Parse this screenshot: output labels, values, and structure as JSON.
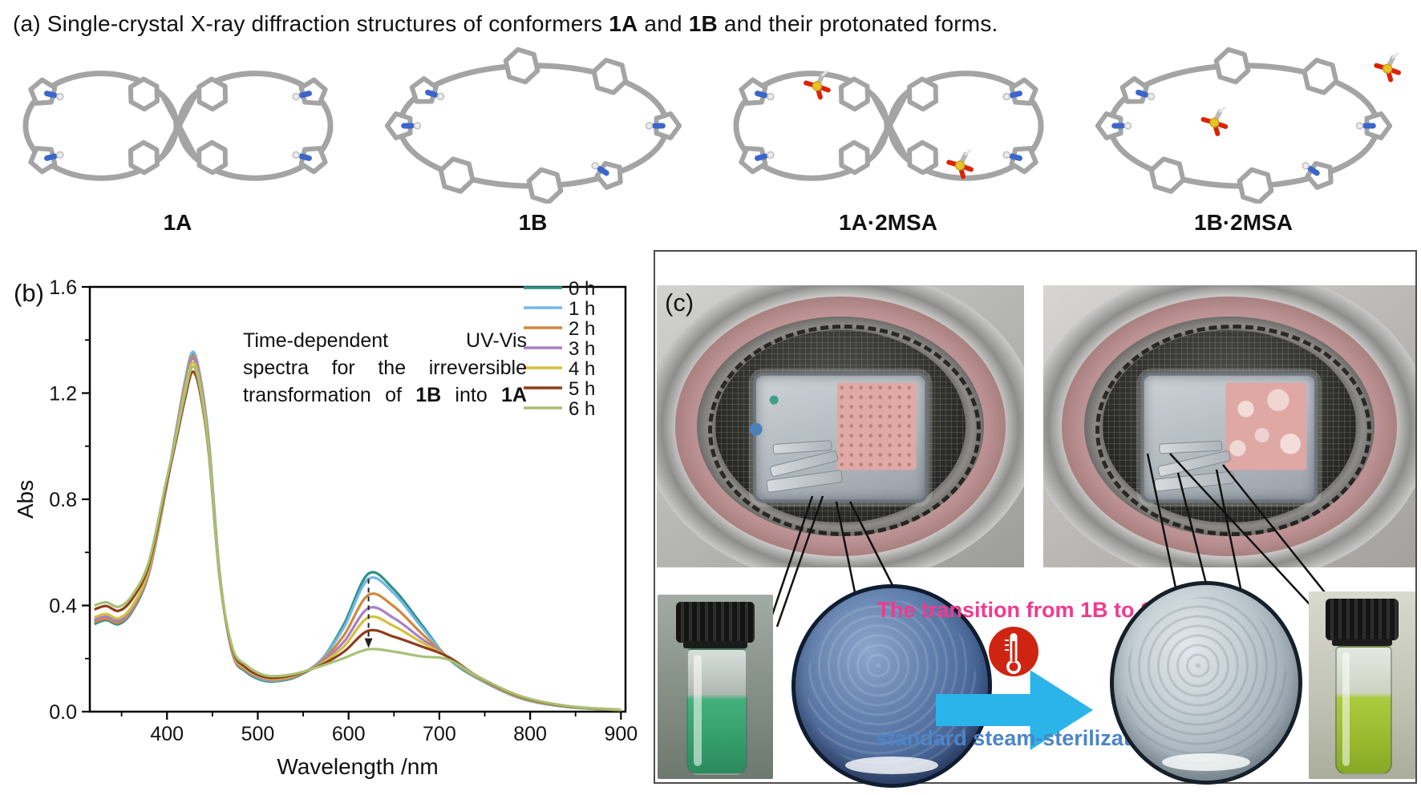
{
  "figure_title_segments": [
    {
      "t": "(a) Single-crystal X-ray diffraction structures of conformers "
    },
    {
      "t": "1A",
      "b": true
    },
    {
      "t": " and "
    },
    {
      "t": "1B",
      "b": true
    },
    {
      "t": " and their protonated forms."
    }
  ],
  "panel_a": {
    "label": "(a)",
    "molecules": [
      {
        "label": "1A",
        "shape": "figure8"
      },
      {
        "label": "1B",
        "shape": "ellipse"
      },
      {
        "label": "1A·2MSA",
        "shape": "figure8-msa"
      },
      {
        "label": "1B·2MSA",
        "shape": "ellipse-msa"
      }
    ]
  },
  "chart_data": {
    "type": "line",
    "panel_label": "(b)",
    "title": "",
    "xlabel": "Wavelength /nm",
    "ylabel": "Abs",
    "xlim": [
      315,
      905
    ],
    "ylim": [
      0,
      1.6
    ],
    "xticks": [
      400,
      500,
      600,
      700,
      800,
      900
    ],
    "xticks_minor": [
      350,
      450,
      550,
      650,
      750,
      850
    ],
    "yticks": [
      "0.0",
      "0.4",
      "0.8",
      "1.2",
      "1.6"
    ],
    "ytick_values": [
      0,
      0.4,
      0.8,
      1.2,
      1.6
    ],
    "yticks_minor": [
      0.2,
      0.6,
      1.0,
      1.4
    ],
    "grid": false,
    "legend_position": "upper right",
    "x": [
      320,
      333,
      347,
      362,
      380,
      398,
      410,
      420,
      428,
      436,
      446,
      458,
      472,
      487,
      505,
      522,
      545,
      570,
      595,
      622,
      650,
      680,
      710,
      745,
      790,
      840,
      900
    ],
    "series": [
      {
        "name": "0 h",
        "color": "#2f9184",
        "values": [
          0.33,
          0.345,
          0.33,
          0.38,
          0.52,
          0.82,
          1.05,
          1.24,
          1.35,
          1.27,
          1.02,
          0.52,
          0.22,
          0.15,
          0.118,
          0.115,
          0.135,
          0.195,
          0.33,
          0.52,
          0.46,
          0.33,
          0.2,
          0.12,
          0.05,
          0.018,
          0.006
        ]
      },
      {
        "name": "1 h",
        "color": "#72b8e6",
        "values": [
          0.34,
          0.355,
          0.34,
          0.39,
          0.53,
          0.83,
          1.06,
          1.25,
          1.355,
          1.275,
          1.025,
          0.525,
          0.222,
          0.155,
          0.122,
          0.118,
          0.138,
          0.196,
          0.318,
          0.5,
          0.445,
          0.32,
          0.202,
          0.122,
          0.051,
          0.018,
          0.006
        ]
      },
      {
        "name": "2 h",
        "color": "#d1873f",
        "values": [
          0.337,
          0.35,
          0.336,
          0.386,
          0.525,
          0.825,
          1.052,
          1.238,
          1.34,
          1.262,
          1.012,
          0.518,
          0.222,
          0.155,
          0.125,
          0.12,
          0.138,
          0.19,
          0.288,
          0.44,
          0.396,
          0.296,
          0.203,
          0.123,
          0.052,
          0.019,
          0.006
        ]
      },
      {
        "name": "3 h",
        "color": "#a97fc6",
        "values": [
          0.345,
          0.358,
          0.343,
          0.392,
          0.53,
          0.826,
          1.046,
          1.228,
          1.33,
          1.252,
          1.004,
          0.514,
          0.226,
          0.158,
          0.127,
          0.122,
          0.14,
          0.186,
          0.264,
          0.39,
          0.352,
          0.276,
          0.204,
          0.124,
          0.053,
          0.019,
          0.006
        ]
      },
      {
        "name": "4 h",
        "color": "#d4c03c",
        "values": [
          0.355,
          0.368,
          0.352,
          0.4,
          0.536,
          0.83,
          1.04,
          1.216,
          1.315,
          1.24,
          0.995,
          0.512,
          0.23,
          0.161,
          0.13,
          0.124,
          0.141,
          0.181,
          0.246,
          0.355,
          0.322,
          0.262,
          0.205,
          0.125,
          0.054,
          0.02,
          0.006
        ]
      },
      {
        "name": "5 h",
        "color": "#8e3d1c",
        "values": [
          0.385,
          0.398,
          0.38,
          0.426,
          0.552,
          0.836,
          1.022,
          1.182,
          1.28,
          1.21,
          0.976,
          0.506,
          0.236,
          0.166,
          0.133,
          0.128,
          0.143,
          0.176,
          0.226,
          0.305,
          0.282,
          0.246,
          0.206,
          0.127,
          0.056,
          0.021,
          0.007
        ]
      },
      {
        "name": "6 h",
        "color": "#a9c075",
        "values": [
          0.4,
          0.412,
          0.395,
          0.44,
          0.565,
          0.85,
          1.036,
          1.2,
          1.3,
          1.226,
          0.986,
          0.512,
          0.242,
          0.176,
          0.14,
          0.134,
          0.146,
          0.172,
          0.202,
          0.235,
          0.226,
          0.208,
          0.196,
          0.128,
          0.058,
          0.022,
          0.007
        ]
      }
    ],
    "annotation_lines": [
      [
        {
          "t": "Time-dependent"
        },
        {
          "t": "UV-Vis"
        }
      ],
      [
        {
          "t": "spectra"
        },
        {
          "t": "for"
        },
        {
          "t": "the"
        },
        {
          "t": "irreversible"
        }
      ],
      [
        {
          "t": "transformation"
        },
        {
          "t": "of"
        },
        {
          "t": "1B",
          "b": true
        },
        {
          "t": "into"
        },
        {
          "t": "1A",
          "b": true
        }
      ]
    ],
    "arrow": {
      "x": 622,
      "y_from": 0.5,
      "y_to": 0.24
    }
  },
  "panel_c": {
    "label": "(c)",
    "transition_text": "The transition from 1B to 1A",
    "process_text": "standard steam-sterilization",
    "colors": {
      "transition_text": "#f23a8e",
      "process_text": "#4d85c6",
      "arrow": "#2ab4ea",
      "disc_left_body": "#4a689a",
      "disc_right_body": "#97a5ae",
      "vial_left_liquid": "#44b07c",
      "vial_right_liquid": "#abcb3f",
      "thermometer": "#cf2412"
    }
  }
}
